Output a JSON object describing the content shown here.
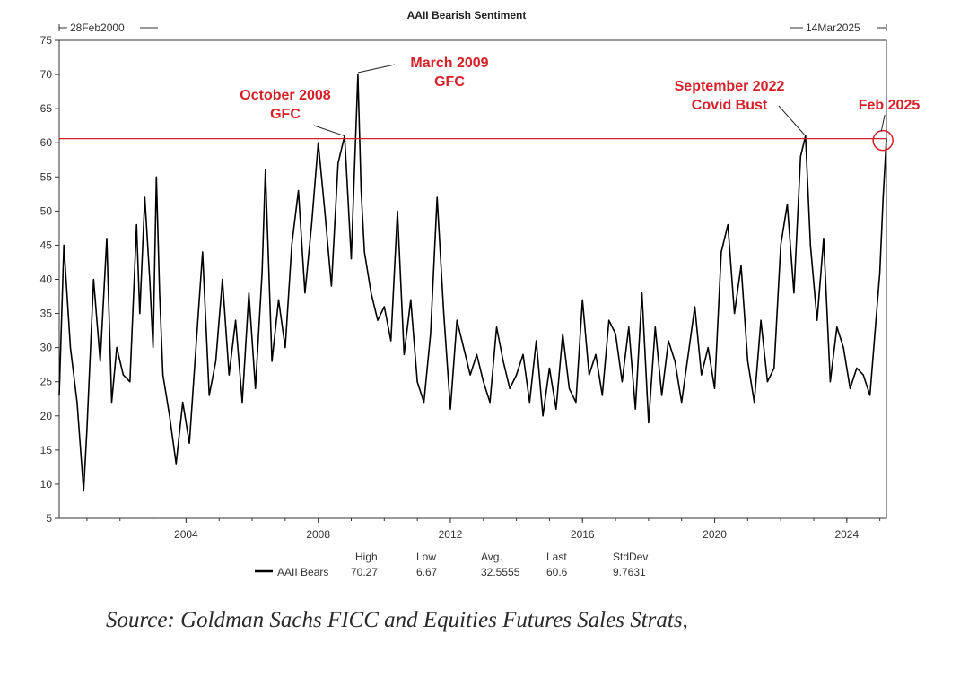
{
  "chart_data": {
    "type": "line",
    "title": "AAII Bearish Sentiment",
    "start_label": "28Feb2000",
    "end_label": "14Mar2025",
    "xlabel": "",
    "ylabel": "",
    "xlim": [
      2000.16,
      2025.2
    ],
    "ylim": [
      5,
      75
    ],
    "y_ticks": [
      "5",
      "10",
      "15",
      "20",
      "25",
      "30",
      "35",
      "40",
      "45",
      "50",
      "55",
      "60",
      "65",
      "70",
      "75"
    ],
    "x_ticks": [
      "2004",
      "2008",
      "2012",
      "2016",
      "2020",
      "2024"
    ],
    "grid": false,
    "reference_line": {
      "value": 60.6,
      "color": "#d62027"
    },
    "series": [
      {
        "name": "AAII Bears",
        "color": "#000000",
        "x": [
          2000.16,
          2000.3,
          2000.5,
          2000.7,
          2000.9,
          2001.0,
          2001.2,
          2001.4,
          2001.6,
          2001.75,
          2001.9,
          2002.1,
          2002.3,
          2002.5,
          2002.6,
          2002.75,
          2002.9,
          2003.0,
          2003.1,
          2003.2,
          2003.3,
          2003.5,
          2003.7,
          2003.9,
          2004.1,
          2004.3,
          2004.5,
          2004.7,
          2004.9,
          2005.1,
          2005.3,
          2005.5,
          2005.7,
          2005.9,
          2006.1,
          2006.3,
          2006.4,
          2006.6,
          2006.8,
          2007.0,
          2007.2,
          2007.4,
          2007.6,
          2007.8,
          2008.0,
          2008.2,
          2008.4,
          2008.6,
          2008.8,
          2009.0,
          2009.2,
          2009.3,
          2009.4,
          2009.6,
          2009.8,
          2010.0,
          2010.2,
          2010.4,
          2010.6,
          2010.8,
          2011.0,
          2011.2,
          2011.4,
          2011.6,
          2011.8,
          2012.0,
          2012.2,
          2012.4,
          2012.6,
          2012.8,
          2013.0,
          2013.2,
          2013.4,
          2013.6,
          2013.8,
          2014.0,
          2014.2,
          2014.4,
          2014.6,
          2014.8,
          2015.0,
          2015.2,
          2015.4,
          2015.6,
          2015.8,
          2016.0,
          2016.2,
          2016.4,
          2016.6,
          2016.8,
          2017.0,
          2017.2,
          2017.4,
          2017.6,
          2017.8,
          2018.0,
          2018.2,
          2018.4,
          2018.6,
          2018.8,
          2019.0,
          2019.2,
          2019.4,
          2019.6,
          2019.8,
          2020.0,
          2020.2,
          2020.4,
          2020.6,
          2020.8,
          2021.0,
          2021.2,
          2021.4,
          2021.6,
          2021.8,
          2022.0,
          2022.2,
          2022.4,
          2022.6,
          2022.75,
          2022.9,
          2023.1,
          2023.3,
          2023.5,
          2023.7,
          2023.9,
          2024.1,
          2024.3,
          2024.5,
          2024.7,
          2024.85,
          2025.0,
          2025.1,
          2025.2
        ],
        "values": [
          23,
          45,
          30,
          22,
          9,
          18,
          40,
          28,
          46,
          22,
          30,
          26,
          25,
          48,
          35,
          52,
          40,
          30,
          55,
          38,
          26,
          20,
          13,
          22,
          16,
          30,
          44,
          23,
          28,
          40,
          26,
          34,
          22,
          38,
          24,
          41,
          56,
          28,
          37,
          30,
          45,
          53,
          38,
          48,
          60,
          50,
          39,
          57,
          61,
          43,
          70,
          53,
          44,
          38,
          34,
          36,
          31,
          50,
          29,
          37,
          25,
          22,
          32,
          52,
          35,
          21,
          34,
          30,
          26,
          29,
          25,
          22,
          33,
          28,
          24,
          26,
          29,
          22,
          31,
          20,
          27,
          21,
          32,
          24,
          22,
          37,
          26,
          29,
          23,
          34,
          32,
          25,
          33,
          21,
          38,
          19,
          33,
          23,
          31,
          28,
          22,
          29,
          36,
          26,
          30,
          24,
          44,
          48,
          35,
          42,
          28,
          22,
          34,
          25,
          27,
          45,
          51,
          38,
          58,
          61,
          45,
          34,
          46,
          25,
          33,
          30,
          24,
          27,
          26,
          23,
          32,
          41,
          52,
          60.6
        ]
      }
    ],
    "annotations": [
      {
        "lines": [
          "October 2008",
          "GFC"
        ],
        "x": 2008.8,
        "y": 61.0
      },
      {
        "lines": [
          "March 2009",
          "GFC"
        ],
        "x": 2009.2,
        "y": 70.27
      },
      {
        "lines": [
          "September 2022",
          "Covid Bust"
        ],
        "x": 2022.75,
        "y": 61.0
      },
      {
        "lines": [
          "Feb 2025"
        ],
        "x": 2025.15,
        "y": 60.6
      }
    ],
    "stats": {
      "headers": [
        "High",
        "Low",
        "Avg.",
        "Last",
        "StdDev"
      ],
      "series_label": "AAII Bears",
      "values": [
        "70.27",
        "6.67",
        "32.5555",
        "60.6",
        "9.7631"
      ]
    }
  },
  "source": "Source: Goldman Sachs FICC and Equities Futures Sales Strats,"
}
